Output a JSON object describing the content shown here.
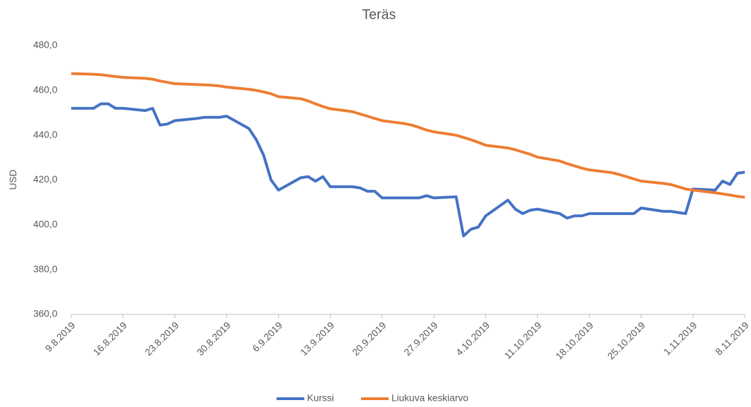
{
  "chart_data": {
    "type": "line",
    "title": "Teräs",
    "y_label": "USD",
    "x": [
      "9.8.2019",
      "12.8.2019",
      "13.8.2019",
      "14.8.2019",
      "15.8.2019",
      "16.8.2019",
      "19.8.2019",
      "20.8.2019",
      "21.8.2019",
      "22.8.2019",
      "23.8.2019",
      "26.8.2019",
      "27.8.2019",
      "28.8.2019",
      "29.8.2019",
      "30.8.2019",
      "2.9.2019",
      "3.9.2019",
      "4.9.2019",
      "5.9.2019",
      "6.9.2019",
      "9.9.2019",
      "10.9.2019",
      "11.9.2019",
      "12.9.2019",
      "13.9.2019",
      "16.9.2019",
      "17.9.2019",
      "18.9.2019",
      "19.9.2019",
      "20.9.2019",
      "23.9.2019",
      "24.9.2019",
      "25.9.2019",
      "26.9.2019",
      "27.9.2019",
      "30.9.2019",
      "1.10.2019",
      "2.10.2019",
      "3.10.2019",
      "4.10.2019",
      "7.10.2019",
      "8.10.2019",
      "9.10.2019",
      "10.10.2019",
      "11.10.2019",
      "14.10.2019",
      "15.10.2019",
      "16.10.2019",
      "17.10.2019",
      "18.10.2019",
      "21.10.2019",
      "22.10.2019",
      "23.10.2019",
      "24.10.2019",
      "25.10.2019",
      "28.10.2019",
      "29.10.2019",
      "30.10.2019",
      "31.10.2019",
      "1.11.2019",
      "4.11.2019",
      "5.11.2019",
      "6.11.2019",
      "7.11.2019",
      "8.11.2019"
    ],
    "series": [
      {
        "name": "Kurssi",
        "color": "#4472c4",
        "values": [
          452,
          452,
          454,
          454,
          452,
          452,
          451,
          452,
          444.5,
          445,
          446.5,
          447.5,
          448,
          448,
          448,
          448.5,
          443,
          438,
          431,
          420,
          415.5,
          421,
          421.5,
          419.5,
          421.5,
          417,
          417,
          416.5,
          415,
          415,
          412,
          412,
          412,
          412,
          413,
          412,
          412.5,
          395,
          398,
          399,
          404,
          411,
          407,
          405,
          406.5,
          407,
          405,
          403,
          404,
          404,
          405,
          405,
          405,
          405,
          405,
          407.5,
          406,
          406,
          405.5,
          405,
          416,
          415.5,
          419.5,
          418,
          423,
          423.5
        ]
      },
      {
        "name": "Liukuva keskiarvo",
        "color": "#ed7d31",
        "values": [
          467.5,
          467.2,
          467,
          466.6,
          466.2,
          465.8,
          465.4,
          465,
          464.2,
          463.6,
          463,
          462.6,
          462.5,
          462.3,
          462,
          461.5,
          460.5,
          460,
          459.3,
          458.5,
          457.2,
          456.3,
          455.3,
          454,
          452.8,
          451.8,
          450.5,
          449.5,
          448.5,
          447.5,
          446.5,
          445.2,
          444.5,
          443.5,
          442.3,
          441.5,
          440,
          439,
          438,
          436.8,
          435.5,
          434.3,
          433.5,
          432.5,
          431.5,
          430.2,
          428.5,
          427.3,
          426.3,
          425.3,
          424.5,
          423.3,
          422.5,
          421.5,
          420.5,
          419.5,
          418.5,
          418,
          417,
          416,
          415.5,
          414.3,
          413.8,
          413.3,
          412.7,
          412.3
        ]
      }
    ],
    "xlim": [
      "9.8.2019",
      "8.11.2019"
    ],
    "xticks": [
      "9.8.2019",
      "16.8.2019",
      "23.8.2019",
      "30.8.2019",
      "6.9.2019",
      "13.9.2019",
      "20.9.2019",
      "27.9.2019",
      "4.10.2019",
      "11.10.2019",
      "18.10.2019",
      "25.10.2019",
      "1.11.2019",
      "8.11.2019"
    ],
    "ylim": [
      360,
      480
    ],
    "yticks": [
      {
        "value": 360,
        "label": "360,0"
      },
      {
        "value": 380,
        "label": "380,0"
      },
      {
        "value": 400,
        "label": "400,0"
      },
      {
        "value": 420,
        "label": "420,0"
      },
      {
        "value": 440,
        "label": "440,0"
      },
      {
        "value": 460,
        "label": "460,0"
      },
      {
        "value": 480,
        "label": "480,0"
      }
    ],
    "grid": false,
    "legend": "bottom"
  }
}
